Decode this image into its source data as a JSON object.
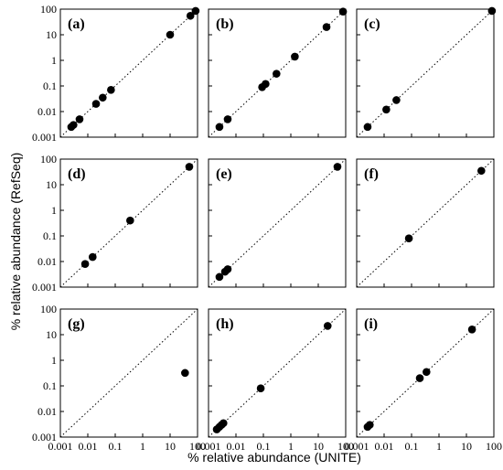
{
  "figure": {
    "xlabel": "% relative abundance (UNITE)",
    "ylabel": "% relative abundance (RefSeq)"
  },
  "chart_data": [
    {
      "type": "scatter",
      "panel": "(a)",
      "log_scale": true,
      "xlim": [
        0.001,
        100
      ],
      "ylim": [
        0.001,
        100
      ],
      "x": [
        0.0025,
        0.003,
        0.005,
        0.02,
        0.035,
        0.07,
        10,
        55,
        85
      ],
      "y": [
        0.0025,
        0.003,
        0.005,
        0.02,
        0.035,
        0.07,
        10,
        55,
        85
      ]
    },
    {
      "type": "scatter",
      "panel": "(b)",
      "log_scale": true,
      "xlim": [
        0.001,
        100
      ],
      "ylim": [
        0.001,
        100
      ],
      "x": [
        0.0025,
        0.005,
        0.09,
        0.12,
        0.3,
        1.4,
        20,
        80
      ],
      "y": [
        0.0025,
        0.005,
        0.09,
        0.12,
        0.3,
        1.4,
        20,
        80
      ]
    },
    {
      "type": "scatter",
      "panel": "(c)",
      "log_scale": true,
      "xlim": [
        0.001,
        100
      ],
      "ylim": [
        0.001,
        100
      ],
      "x": [
        0.0025,
        0.012,
        0.028,
        85
      ],
      "y": [
        0.0025,
        0.012,
        0.028,
        85
      ]
    },
    {
      "type": "scatter",
      "panel": "(d)",
      "log_scale": true,
      "xlim": [
        0.001,
        100
      ],
      "ylim": [
        0.001,
        100
      ],
      "x": [
        0.008,
        0.015,
        0.35,
        50
      ],
      "y": [
        0.008,
        0.015,
        0.4,
        50
      ]
    },
    {
      "type": "scatter",
      "panel": "(e)",
      "log_scale": true,
      "xlim": [
        0.001,
        100
      ],
      "ylim": [
        0.001,
        100
      ],
      "x": [
        0.0025,
        0.004,
        0.005,
        50
      ],
      "y": [
        0.0025,
        0.004,
        0.005,
        50
      ]
    },
    {
      "type": "scatter",
      "panel": "(f)",
      "log_scale": true,
      "xlim": [
        0.001,
        100
      ],
      "ylim": [
        0.001,
        100
      ],
      "x": [
        0.08,
        35
      ],
      "y": [
        0.08,
        35
      ]
    },
    {
      "type": "scatter",
      "panel": "(g)",
      "log_scale": true,
      "xlim": [
        0.001,
        100
      ],
      "ylim": [
        0.001,
        100
      ],
      "x": [
        35
      ],
      "y": [
        0.32
      ]
    },
    {
      "type": "scatter",
      "panel": "(h)",
      "log_scale": true,
      "xlim": [
        0.001,
        100
      ],
      "ylim": [
        0.001,
        100
      ],
      "x": [
        0.002,
        0.0025,
        0.003,
        0.0035,
        0.08,
        22
      ],
      "y": [
        0.002,
        0.0025,
        0.003,
        0.0035,
        0.08,
        22
      ]
    },
    {
      "type": "scatter",
      "panel": "(i)",
      "log_scale": true,
      "xlim": [
        0.001,
        100
      ],
      "ylim": [
        0.001,
        100
      ],
      "x": [
        0.0025,
        0.003,
        0.2,
        0.35,
        16
      ],
      "y": [
        0.0025,
        0.003,
        0.2,
        0.35,
        16
      ]
    }
  ],
  "ticks": [
    "0.001",
    "0.01",
    "0.1",
    "1",
    "10",
    "100"
  ]
}
